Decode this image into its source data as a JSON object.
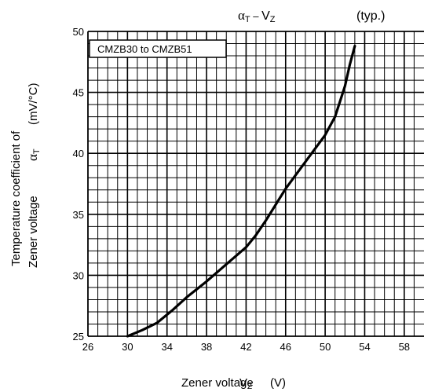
{
  "header": {
    "title_main": "α",
    "title_sub1": "T",
    "title_dash": " – ",
    "title_main2": "V",
    "title_sub2": "Z",
    "typ": "(typ.)"
  },
  "legend": {
    "label": "CMZB30 to CMZB51"
  },
  "ylabel": {
    "line1": "Temperature coefficient of",
    "line2_text": "Zener voltage",
    "symbol": "α",
    "symbol_sub": "T",
    "unit": "(mV/°C)"
  },
  "xlabel": {
    "text": "Zener voltage",
    "symbol": "V",
    "symbol_sub": "Z",
    "unit": "(V)"
  },
  "chart_data": {
    "type": "line",
    "title": "αT – VZ",
    "annotation": "(typ.)",
    "xlim": [
      26,
      60
    ],
    "ylim": [
      25,
      50
    ],
    "x_ticks": [
      26,
      30,
      34,
      38,
      42,
      46,
      50,
      54,
      58
    ],
    "y_ticks": [
      25,
      30,
      35,
      40,
      45,
      50
    ],
    "x_tick_labels": [
      "26",
      "30",
      "34",
      "38",
      "42",
      "46",
      "50",
      "54",
      "58"
    ],
    "y_tick_labels": [
      "25",
      "30",
      "35",
      "40",
      "45",
      "50"
    ],
    "x_minor_step": 1,
    "y_minor_step": 1,
    "grid": true,
    "legend_position": "top-left",
    "series": [
      {
        "name": "CMZB30 to CMZB51",
        "x": [
          30,
          31.5,
          33,
          34.5,
          36,
          38,
          40,
          42,
          43,
          44,
          46,
          48,
          50,
          51,
          52,
          52.5,
          53
        ],
        "y": [
          25,
          25.5,
          26.1,
          27.1,
          28.2,
          29.5,
          30.9,
          32.3,
          33.3,
          34.5,
          37.1,
          39.3,
          41.5,
          43,
          45.5,
          47.3,
          48.8
        ]
      }
    ]
  }
}
